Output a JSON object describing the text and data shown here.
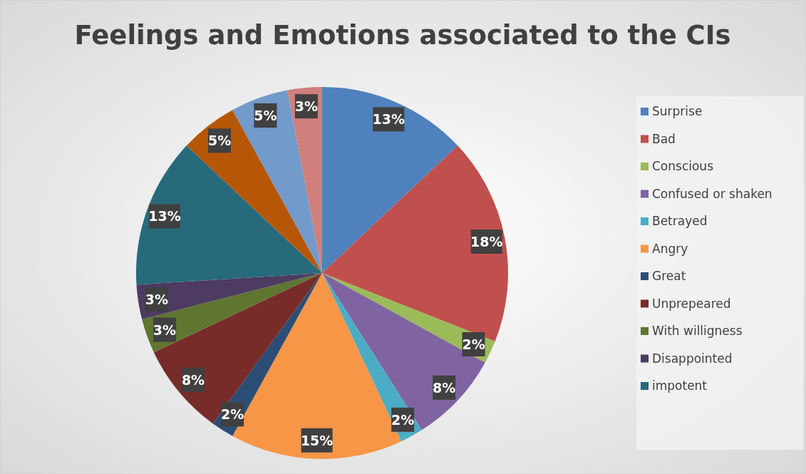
{
  "chart_data": {
    "type": "pie",
    "title": "Feelings and Emotions associated to the CIs",
    "categories": [
      "Surprise",
      "Bad",
      "Conscious",
      "Confused or shaken",
      "Betrayed",
      "Angry",
      "Great",
      "Unprepeared",
      "With willigness",
      "Disappointed",
      "impotent",
      null,
      null,
      null
    ],
    "values": [
      13,
      18,
      2,
      8,
      2,
      15,
      2,
      8,
      3,
      3,
      13,
      5,
      5,
      3
    ],
    "value_labels": [
      "13%",
      "18%",
      "2%",
      "8%",
      "2%",
      "15%",
      "2%",
      "8%",
      "3%",
      "3%",
      "13%",
      "5%",
      "5%",
      "3%"
    ],
    "colors": [
      "#4f81bd",
      "#c0504d",
      "#9bbb59",
      "#8064a2",
      "#4bacc6",
      "#f79646",
      "#2c4d75",
      "#772c2a",
      "#5f7530",
      "#4d3b62",
      "#276a7c",
      "#b65708",
      "#729aca",
      "#d07f7d"
    ],
    "legend": "right"
  }
}
